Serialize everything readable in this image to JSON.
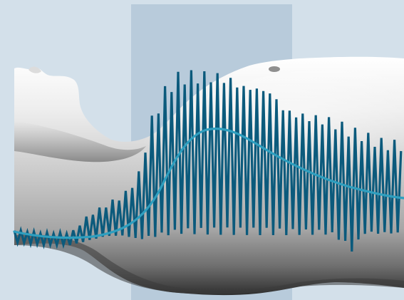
{
  "colors": {
    "background": "#d3e0ea",
    "highlight_band": "#b8cbdb",
    "raw_signal": "#0b5a7c",
    "smoothed_curve": "#2f9fbf",
    "body_light": "#f2f2f2",
    "body_mid": "#b9b9b9",
    "body_dark": "#3c3c3c"
  },
  "illustration": {
    "subject": "torso-silhouette",
    "signals": [
      "raw-oscillating-signal",
      "smoothed-envelope-curve"
    ],
    "highlight": "shaded-vertical-band"
  }
}
